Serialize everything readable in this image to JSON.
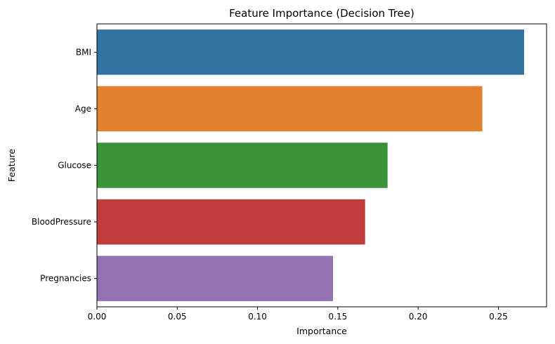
{
  "chart_data": {
    "type": "bar",
    "orientation": "horizontal",
    "title": "Feature Importance (Decision Tree)",
    "xlabel": "Importance",
    "ylabel": "Feature",
    "categories": [
      "BMI",
      "Age",
      "Glucose",
      "BloodPressure",
      "Pregnancies"
    ],
    "values": [
      0.266,
      0.24,
      0.181,
      0.167,
      0.147
    ],
    "colors": [
      "#3274a1",
      "#e1812c",
      "#3a923a",
      "#c03d3e",
      "#9372b2"
    ],
    "xlim": [
      0,
      0.28
    ],
    "xticks": [
      0.0,
      0.05,
      0.1,
      0.15,
      0.2,
      0.25
    ],
    "xtick_labels": [
      "0.00",
      "0.05",
      "0.10",
      "0.15",
      "0.20",
      "0.25"
    ],
    "grid": false,
    "legend": false
  }
}
